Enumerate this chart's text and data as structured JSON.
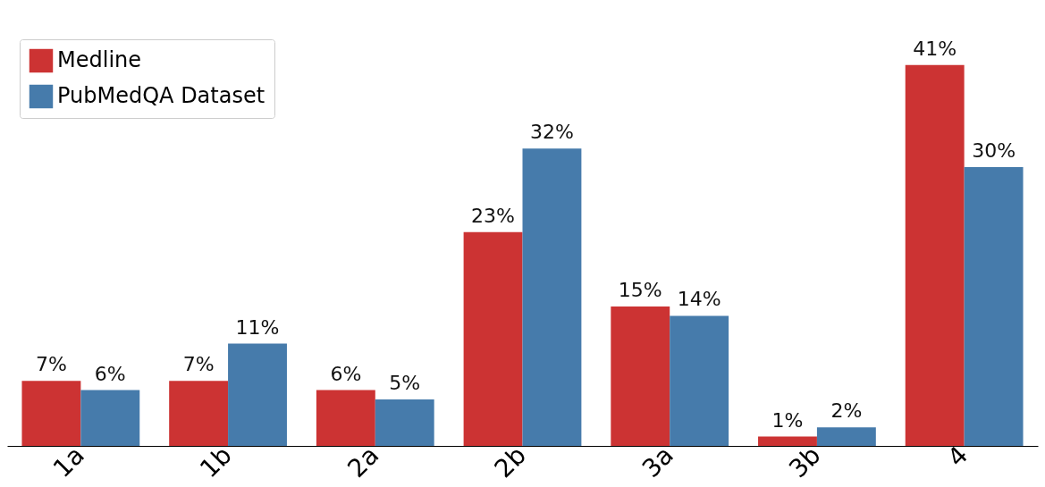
{
  "chart_data": {
    "type": "bar",
    "categories": [
      "1a",
      "1b",
      "2a",
      "2b",
      "3a",
      "3b",
      "4"
    ],
    "series": [
      {
        "name": "Medline",
        "color": "#cc3333",
        "values": [
          7,
          7,
          6,
          23,
          15,
          1,
          41
        ],
        "value_labels": [
          "7%",
          "7%",
          "6%",
          "23%",
          "15%",
          "1%",
          "41%"
        ]
      },
      {
        "name": "PubMedQA Dataset",
        "color": "#467bab",
        "values": [
          6,
          11,
          5,
          32,
          14,
          2,
          30
        ],
        "value_labels": [
          "6%",
          "11%",
          "5%",
          "32%",
          "14%",
          "2%",
          "30%"
        ]
      }
    ],
    "legend": "top left"
  }
}
